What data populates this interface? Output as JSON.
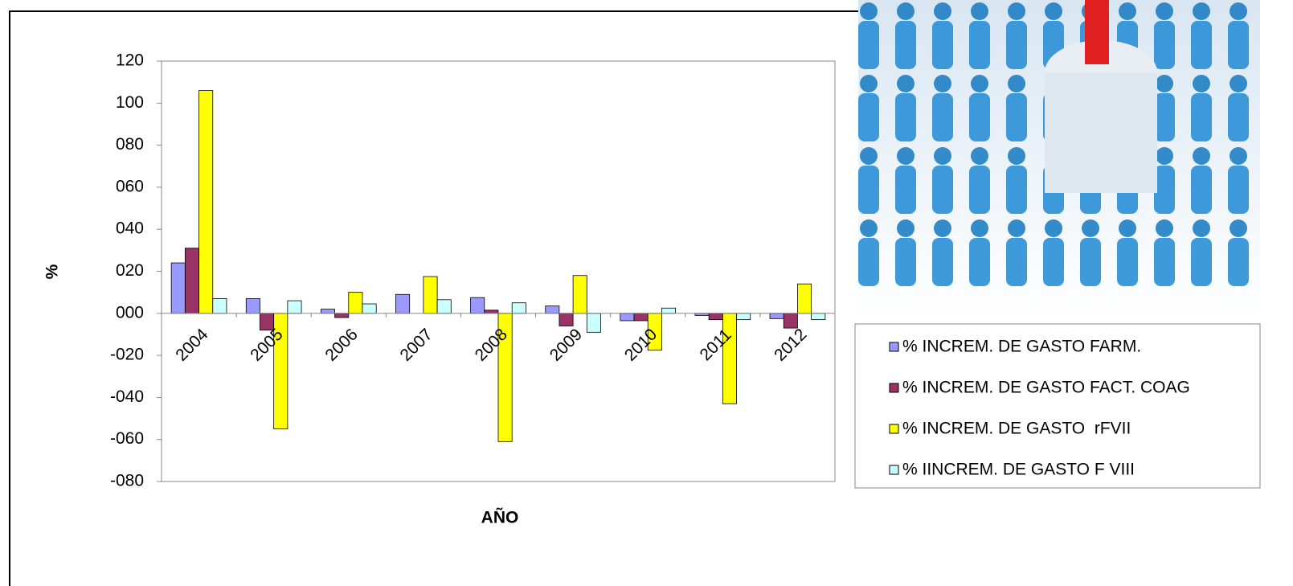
{
  "chart_data": {
    "type": "bar",
    "x_label": "AÑO",
    "y_label": "%",
    "categories": [
      "2004",
      "2005",
      "2006",
      "2007",
      "2008",
      "2009",
      "2010",
      "2011",
      "2012"
    ],
    "series": [
      {
        "name": "% INCREM. DE GASTO FARM.",
        "color": "#9999ff",
        "values": [
          24,
          7,
          2,
          9,
          7.5,
          3.5,
          -3.5,
          -1,
          -2.5
        ]
      },
      {
        "name": "% INCREM. DE GASTO FACT. COAG",
        "color": "#993366",
        "values": [
          31,
          -8,
          -2,
          0,
          1.5,
          -6,
          -3.5,
          -3,
          -7
        ]
      },
      {
        "name": "% INCREM. DE GASTO  rFVII",
        "color": "#ffff00",
        "values": [
          106,
          -55,
          10,
          17.5,
          -61,
          18,
          -17.5,
          -43,
          14
        ]
      },
      {
        "name": "% IINCREM. DE GASTO F VIII",
        "color": "#ccffff",
        "values": [
          7,
          6,
          4.5,
          6.5,
          5,
          -9,
          2.5,
          -3,
          -3
        ]
      }
    ],
    "ylim": [
      -80,
      120
    ],
    "yticks": [
      {
        "value": -80,
        "label": "-080"
      },
      {
        "value": -60,
        "label": "-060"
      },
      {
        "value": -40,
        "label": "-040"
      },
      {
        "value": -20,
        "label": "-020"
      },
      {
        "value": 0,
        "label": "000"
      },
      {
        "value": 20,
        "label": "020"
      },
      {
        "value": 40,
        "label": "040"
      },
      {
        "value": 60,
        "label": "060"
      },
      {
        "value": 80,
        "label": "080"
      },
      100,
      120
    ],
    "grid": false,
    "legend": "right"
  }
}
